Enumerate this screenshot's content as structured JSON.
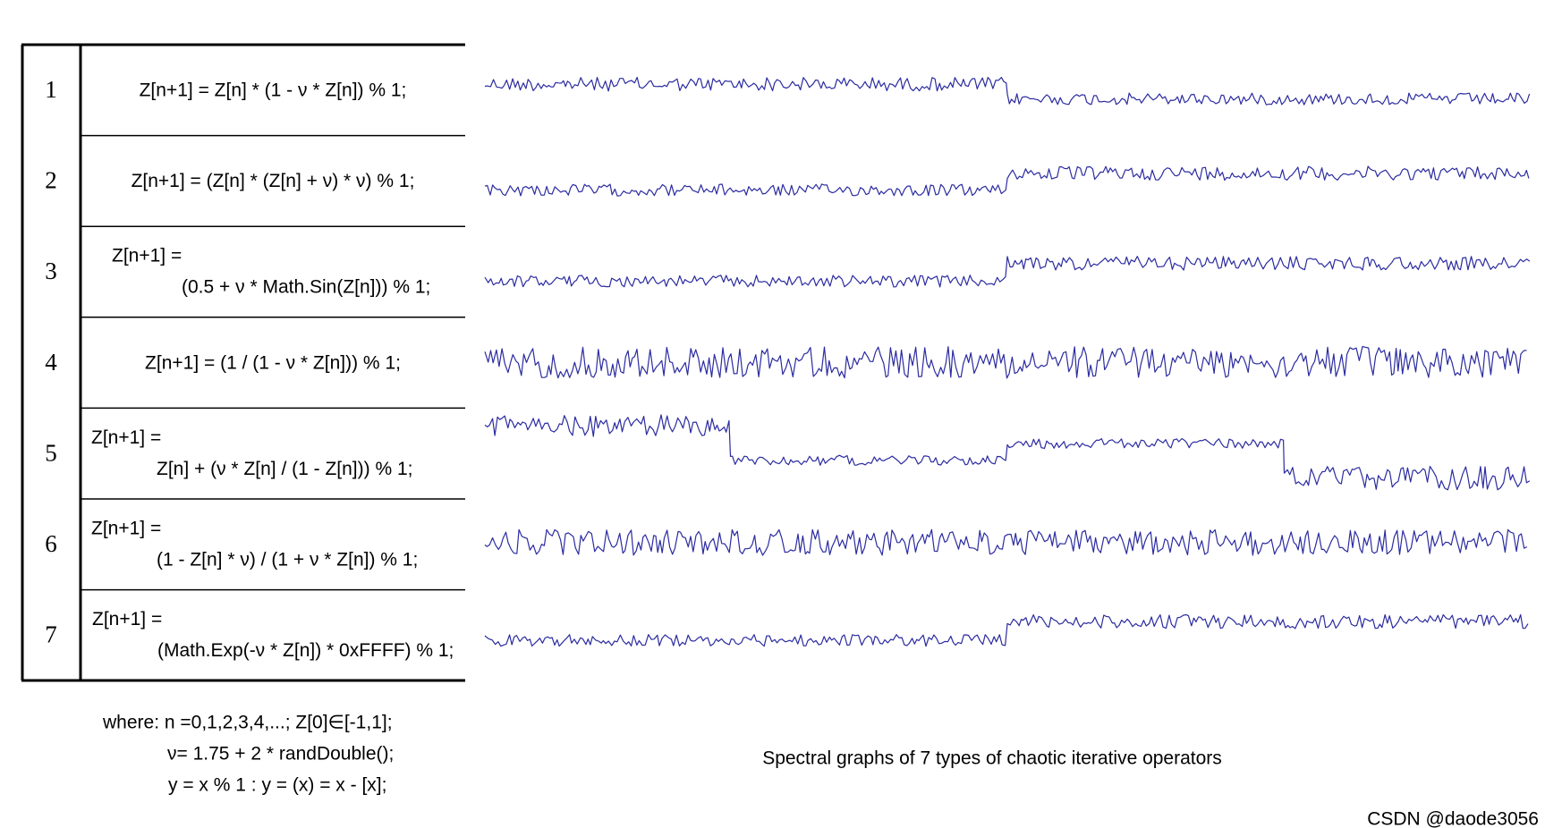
{
  "rows": [
    {
      "index": "1",
      "formula": [
        "Z[n+1] = Z[n] * (1 - ν * Z[n]) % 1;"
      ]
    },
    {
      "index": "2",
      "formula": [
        "Z[n+1] = (Z[n] * (Z[n] + ν) * ν) % 1;"
      ]
    },
    {
      "index": "3",
      "formula": [
        "Z[n+1] =",
        "(0.5 + ν * Math.Sin(Z[n])) % 1;"
      ]
    },
    {
      "index": "4",
      "formula": [
        "Z[n+1] = (1 / (1 - ν * Z[n])) % 1;"
      ]
    },
    {
      "index": "5",
      "formula": [
        "Z[n+1] =",
        "Z[n] + (ν * Z[n] / (1 - Z[n])) % 1;"
      ]
    },
    {
      "index": "6",
      "formula": [
        "Z[n+1] =",
        "(1 - Z[n] * ν) / (1 + ν * Z[n]) % 1;"
      ]
    },
    {
      "index": "7",
      "formula": [
        "Z[n+1] =",
        "(Math.Exp(-ν * Z[n]) * 0xFFFF) % 1;"
      ]
    }
  ],
  "notes": [
    "where:  n =0,1,2,3,4,...; Z[0]∈[-1,1];",
    "ν= 1.75 + 2 * randDouble();",
    "y = x % 1 : y = (x) = x - [x];"
  ],
  "caption": "Spectral graphs of 7 types of chaotic iterative operators",
  "watermark": "CSDN @daode3056"
}
